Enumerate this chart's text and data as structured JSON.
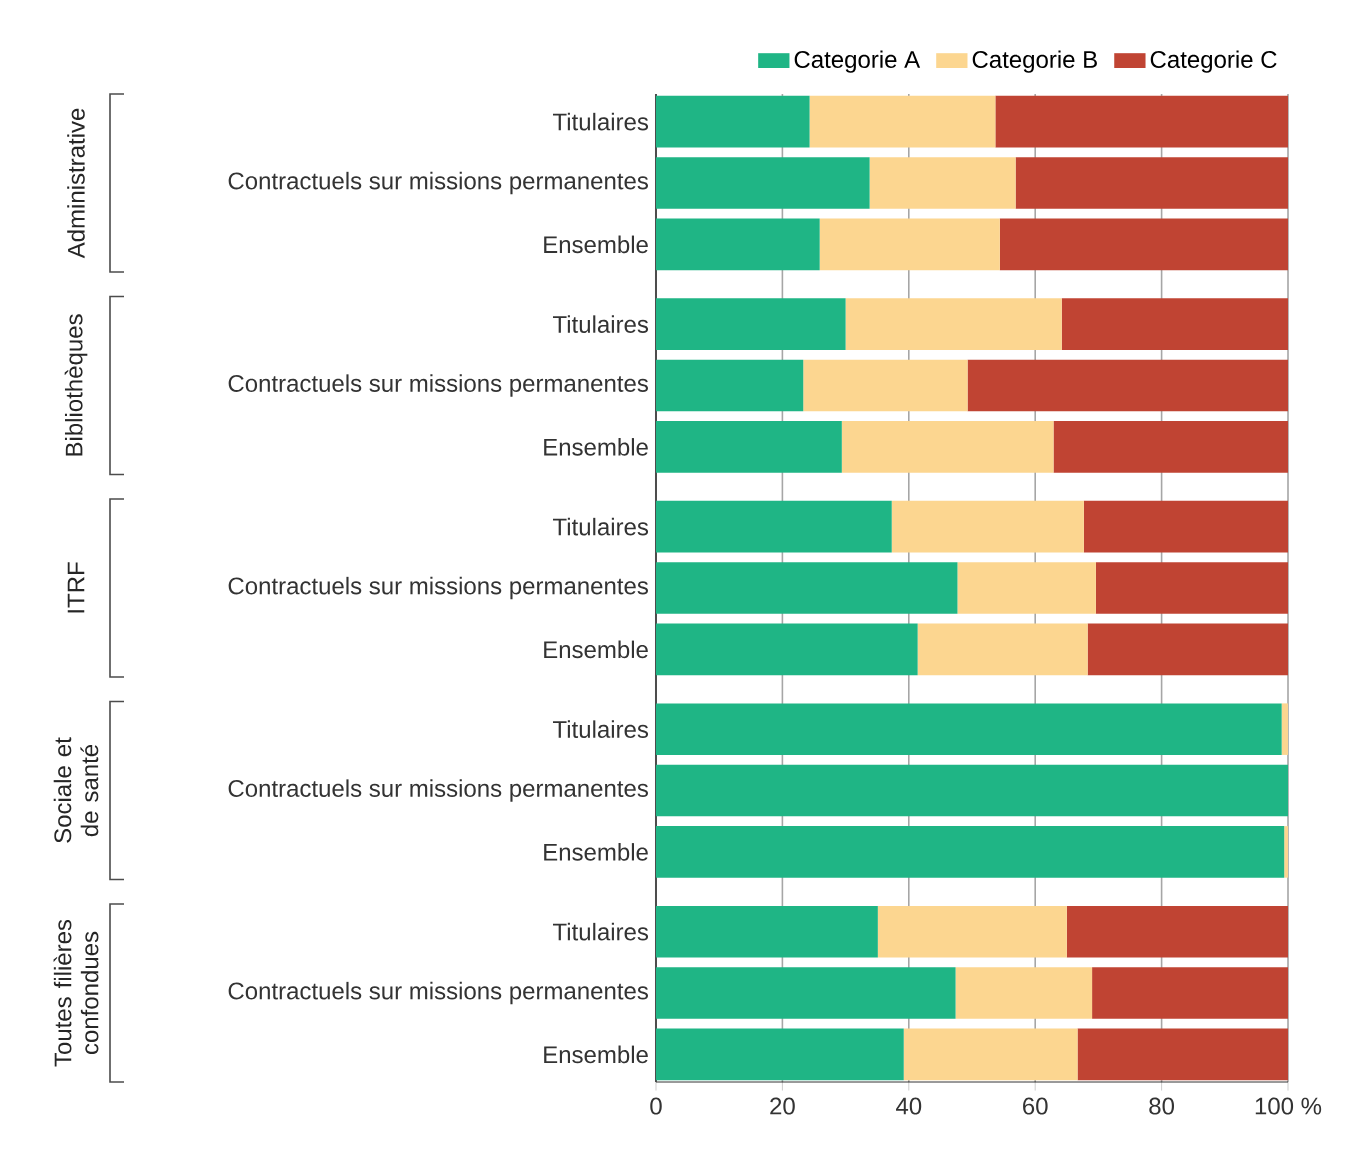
{
  "chart_data": {
    "type": "bar",
    "orientation": "horizontal",
    "stacked": true,
    "categories": [
      "Titulaires",
      "Contractuels sur missions permanentes",
      "Ensemble",
      "Titulaires",
      "Contractuels sur missions permanentes",
      "Ensemble",
      "Titulaires",
      "Contractuels sur missions permanentes",
      "Ensemble",
      "Titulaires",
      "Contractuels sur missions permanentes",
      "Ensemble",
      "Titulaires",
      "Contractuels sur missions permanentes",
      "Ensemble"
    ],
    "series": [
      {
        "name": "Categorie A",
        "color": "#1fb585",
        "values": [
          24.3,
          33.8,
          25.9,
          30.0,
          23.3,
          29.4,
          37.3,
          47.7,
          41.4,
          99.0,
          100,
          99.4,
          35.1,
          47.4,
          39.2
        ]
      },
      {
        "name": "Categorie B",
        "color": "#fcd690",
        "values": [
          29.4,
          23.1,
          28.5,
          34.2,
          26.0,
          33.5,
          30.4,
          21.9,
          26.9,
          1.0,
          0,
          0.6,
          29.9,
          21.6,
          27.5
        ]
      },
      {
        "name": "Categorie C",
        "color": "#c04433",
        "values": [
          46.3,
          43.1,
          45.6,
          35.8,
          50.7,
          37.1,
          32.3,
          30.4,
          31.7,
          0,
          0,
          0,
          35.0,
          31.0,
          33.3
        ]
      }
    ],
    "xlim": [
      0,
      100
    ],
    "xticks": [
      0,
      20,
      40,
      60,
      80,
      {
        "value": 100,
        "label": "100 %"
      }
    ],
    "grid": "x",
    "legend": "top right",
    "annotations": [
      "Administrative",
      "Bibliothèques",
      "ITRF",
      "Sociale et de santé",
      "Toutes filières confondues"
    ]
  }
}
